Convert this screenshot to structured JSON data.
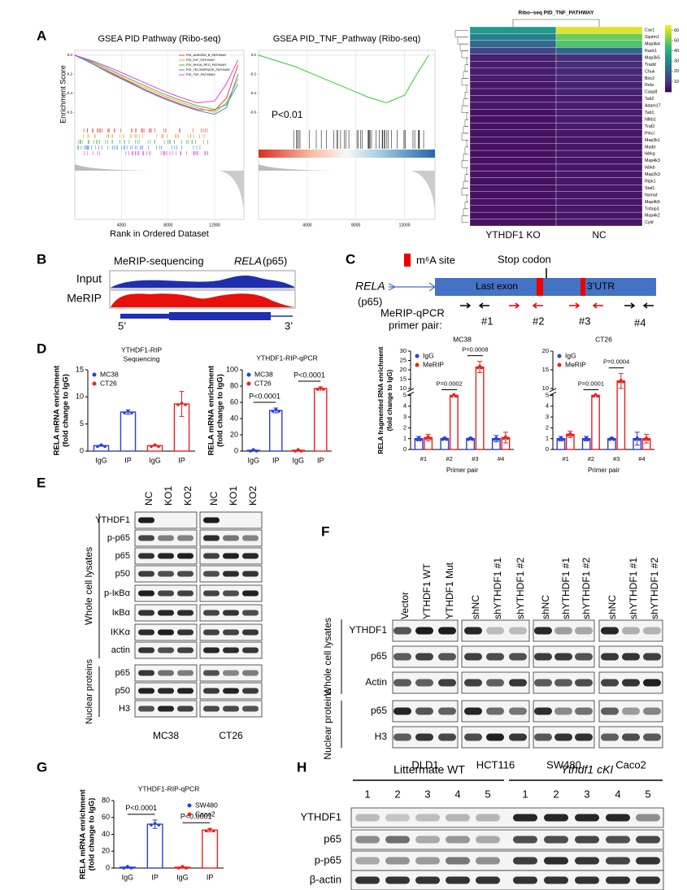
{
  "panel_labels": [
    "A",
    "B",
    "C",
    "D",
    "E",
    "F",
    "G",
    "H"
  ],
  "chart_data": [
    {
      "type": "line",
      "title": "GSEA PID Pathway (Ribo-seq)",
      "ylabel": "Enrichment Score",
      "xlabel": "Rank in Ordered Dataset",
      "x": [
        0,
        1500,
        3000,
        4500,
        6000,
        7500,
        9000,
        10500,
        12000,
        13000,
        14000
      ],
      "xlim": [
        0,
        14500
      ],
      "xticks": [
        4000,
        8000,
        12000
      ],
      "ylim": [
        -0.7,
        0.05
      ],
      "yticks": [
        {
          "value": 0,
          "label": "0.0"
        },
        {
          "value": -0.2,
          "label": "-0.2"
        },
        {
          "value": -0.4,
          "label": "-0.4"
        },
        {
          "value": -0.6,
          "label": "-0.6"
        }
      ],
      "grid": true,
      "legend": "top-right",
      "series": [
        {
          "name": "PID_AURORA_B_PATHWAY",
          "color": "#e8413c",
          "values": [
            0,
            -0.09,
            -0.18,
            -0.27,
            -0.36,
            -0.44,
            -0.51,
            -0.57,
            -0.58,
            -0.45,
            -0.1
          ]
        },
        {
          "name": "PID_E2F_PATHWAY",
          "color": "#e8a33c",
          "values": [
            0,
            -0.08,
            -0.17,
            -0.26,
            -0.34,
            -0.42,
            -0.49,
            -0.55,
            -0.6,
            -0.5,
            -0.25
          ]
        },
        {
          "name": "PID_RHOA_REG_PATHWAY",
          "color": "#4caf50",
          "values": [
            0,
            -0.07,
            -0.15,
            -0.24,
            -0.32,
            -0.4,
            -0.47,
            -0.53,
            -0.57,
            -0.52,
            -0.3
          ]
        },
        {
          "name": "PID_TELOMERASE_PATHWAY",
          "color": "#3c8be8",
          "values": [
            0,
            -0.09,
            -0.19,
            -0.28,
            -0.37,
            -0.45,
            -0.52,
            -0.58,
            -0.62,
            -0.55,
            -0.2
          ]
        },
        {
          "name": "PID_TNF_PATHWAY",
          "color": "#e040e0",
          "values": [
            0,
            -0.06,
            -0.13,
            -0.21,
            -0.29,
            -0.37,
            -0.44,
            -0.5,
            -0.48,
            -0.3,
            -0.05
          ]
        }
      ]
    },
    {
      "type": "line",
      "title": "GSEA PID_TNF_Pathway (Ribo-seq)",
      "annotation": "P<0.01",
      "x": [
        0,
        1500,
        3000,
        4500,
        6000,
        7500,
        9000,
        10500,
        12000,
        13000,
        14000
      ],
      "xlim": [
        0,
        14500
      ],
      "xticks": [
        4000,
        8000,
        12000
      ],
      "ylim": [
        -0.7,
        0.05
      ],
      "yticks": [
        {
          "value": 0,
          "label": "0.0"
        },
        {
          "value": -0.2,
          "label": "-0.2"
        },
        {
          "value": -0.4,
          "label": "-0.4"
        },
        {
          "value": -0.6,
          "label": "-0.6"
        }
      ],
      "grid": true,
      "series": [
        {
          "color": "#33cc33",
          "values": [
            0,
            -0.06,
            -0.12,
            -0.2,
            -0.28,
            -0.36,
            -0.44,
            -0.5,
            -0.42,
            -0.2,
            0.0
          ]
        }
      ]
    },
    {
      "type": "heatmap",
      "title": "Ribo−seq PID_TNF_PATHWAY",
      "columns": [
        "YTHDF1 KO",
        "NC"
      ],
      "rows": [
        "Cav1",
        "Sqstm1",
        "Map4k4",
        "Rack1",
        "Map3k5",
        "Tradd",
        "Chuk",
        "Birc2",
        "Rela",
        "Casp8",
        "Tab2",
        "Adam17",
        "Tab1",
        "Nfkb1",
        "Traf2",
        "Prkci",
        "Map3k1",
        "Madd",
        "Ikbkg",
        "Map4k3",
        "Ikbkb",
        "Map2k3",
        "Ripk1",
        "Stat1",
        "Nsmaf",
        "Map4k5",
        "Tnfaip3",
        "Map4k2",
        "Cyld"
      ],
      "values": [
        [
          35,
          62
        ],
        [
          28,
          50
        ],
        [
          22,
          47
        ],
        [
          14,
          22
        ],
        [
          6,
          9
        ],
        [
          5,
          8
        ],
        [
          5,
          7
        ],
        [
          5,
          7
        ],
        [
          4,
          6
        ],
        [
          4,
          6
        ],
        [
          4,
          5
        ],
        [
          4,
          5
        ],
        [
          3,
          5
        ],
        [
          3,
          5
        ],
        [
          3,
          5
        ],
        [
          3,
          4
        ],
        [
          3,
          4
        ],
        [
          3,
          4
        ],
        [
          3,
          4
        ],
        [
          3,
          4
        ],
        [
          3,
          4
        ],
        [
          3,
          4
        ],
        [
          3,
          4
        ],
        [
          3,
          4
        ],
        [
          3,
          4
        ],
        [
          3,
          4
        ],
        [
          3,
          4
        ],
        [
          3,
          4
        ],
        [
          3,
          4
        ]
      ],
      "zlim": [
        0,
        65
      ],
      "colorbar_ticks": [
        10,
        20,
        30,
        40,
        50,
        60
      ]
    },
    {
      "type": "bar",
      "title": "MC38",
      "categories": [
        "#1",
        "#2",
        "#3",
        "#4"
      ],
      "category_colors": [
        "#000000",
        "#e00000",
        "#e00000",
        "#000000"
      ],
      "series": [
        {
          "name": "IgG",
          "color": "#2a3fd6",
          "values": [
            1,
            1,
            1,
            1
          ],
          "errors": [
            0.2,
            0.1,
            0.1,
            0.3
          ]
        },
        {
          "name": "MeRIP",
          "color": "#e82020",
          "values": [
            1.1,
            5.3,
            21.5,
            1.1
          ],
          "errors": [
            0.3,
            0.3,
            3,
            0.5
          ]
        }
      ],
      "ylim": [
        0,
        30
      ],
      "ybreak": [
        5,
        10
      ],
      "yticks": [
        0,
        1,
        2,
        3,
        4,
        5,
        10,
        15,
        20,
        25,
        30
      ],
      "ylabel": [
        "RELA fragmented RNA enrichment",
        "(fold change to IgG)"
      ],
      "xlabel": "Primer pair",
      "legend": "top-left",
      "annotations": [
        {
          "text": "P=0.0002",
          "category": 1
        },
        {
          "text": "P=0.0008",
          "category": 2
        }
      ]
    },
    {
      "type": "bar",
      "title": "CT26",
      "categories": [
        "#1",
        "#2",
        "#3",
        "#4"
      ],
      "category_colors": [
        "#000000",
        "#e00000",
        "#e00000",
        "#000000"
      ],
      "series": [
        {
          "name": "IgG",
          "color": "#2a3fd6",
          "values": [
            1,
            1,
            1,
            1
          ],
          "errors": [
            0.2,
            0.2,
            0.1,
            0.6
          ]
        },
        {
          "name": "MeRIP",
          "color": "#e82020",
          "values": [
            1.4,
            6.2,
            12,
            1.0
          ],
          "errors": [
            0.3,
            0.3,
            2,
            0.4
          ]
        }
      ],
      "ylim": [
        0,
        20
      ],
      "ybreak": [
        5,
        10
      ],
      "yticks": [
        0,
        1,
        2,
        3,
        4,
        5,
        10,
        15,
        20
      ],
      "xlabel": "Primer pair",
      "legend": "top-left",
      "annotations": [
        {
          "text": "P=0.0001",
          "category": 1
        },
        {
          "text": "P=0.0004",
          "category": 2
        }
      ]
    },
    {
      "type": "bar",
      "title": [
        "YTHDF1-RIP",
        "Sequencing"
      ],
      "categories": [
        "IgG",
        "IP",
        "IgG",
        "IP"
      ],
      "series": [
        {
          "name": "MC38",
          "color": "#2a3fd6",
          "values": [
            1,
            7.2,
            null,
            null
          ],
          "errors": [
            0.1,
            0.4,
            null,
            null
          ]
        },
        {
          "name": "CT26",
          "color": "#e82020",
          "values": [
            null,
            null,
            1,
            8.7
          ],
          "errors": [
            null,
            null,
            0.1,
            2.3
          ]
        }
      ],
      "ylim": [
        0,
        15
      ],
      "yticks": [
        0,
        5,
        10,
        15
      ],
      "ylabel": [
        "RELA mRNA enrichment",
        "(fold change to IgG)"
      ],
      "legend": "top-left"
    },
    {
      "type": "bar",
      "title": "YTHDF1-RIP-qPCR",
      "categories": [
        "IgG",
        "IP",
        "IgG",
        "IP"
      ],
      "series": [
        {
          "name": "MC38",
          "color": "#2a3fd6",
          "values": [
            1,
            50,
            null,
            null
          ],
          "errors": [
            0.5,
            3,
            null,
            null
          ]
        },
        {
          "name": "CT26",
          "color": "#e82020",
          "values": [
            null,
            null,
            1,
            77
          ],
          "errors": [
            null,
            null,
            0.5,
            2
          ]
        }
      ],
      "ylim": [
        0,
        100
      ],
      "yticks": [
        0,
        20,
        40,
        60,
        80,
        100
      ],
      "ylabel": [
        "RELA mRNA enrichment",
        "(fold change to IgG)"
      ],
      "legend": "top-left",
      "annotations": [
        {
          "text": "P<0.0001",
          "category": 1
        },
        {
          "text": "P<0.0001",
          "category": 3
        }
      ]
    },
    {
      "type": "bar",
      "title": "YTHDF1-RIP-qPCR",
      "categories": [
        "IgG",
        "IP",
        "IgG",
        "IP"
      ],
      "series": [
        {
          "name": "SW480",
          "color": "#2a3fd6",
          "values": [
            1,
            52,
            null,
            null
          ],
          "errors": [
            0.5,
            5,
            null,
            null
          ]
        },
        {
          "name": "Caco2",
          "color": "#e82020",
          "values": [
            null,
            null,
            1,
            45
          ],
          "errors": [
            null,
            null,
            0.5,
            2
          ]
        }
      ],
      "ylim": [
        0,
        80
      ],
      "yticks": [
        0,
        20,
        40,
        60,
        80
      ],
      "ylabel": [
        "RELA mRNA enrichment",
        "(fold change to IgG)"
      ],
      "legend": "top-right",
      "annotations": [
        {
          "text": "P<0.0001",
          "category": 1
        },
        {
          "text": "P<0.0001",
          "category": 3
        }
      ]
    }
  ],
  "B": {
    "title": "MeRIP-sequencing",
    "gene": "RELA",
    "gene_suffix": "(p65)",
    "tracks": [
      "Input",
      "MeRIP"
    ],
    "ends": [
      "5’",
      "3’"
    ]
  },
  "C_diagram": {
    "legend": "m⁶A site",
    "stop": "Stop codon",
    "gene": "RELA",
    "gene_suffix": "(p65)",
    "regions": [
      "Last exon",
      "3’UTR"
    ],
    "primer_label": [
      "MeRIP-qPCR",
      "primer pair:"
    ],
    "primers": [
      "#1",
      "#2",
      "#3",
      "#4"
    ]
  },
  "E": {
    "lanes": [
      "NC",
      "KO1",
      "KO2",
      "NC",
      "KO1",
      "KO2"
    ],
    "rows": [
      "YTHDF1",
      "p-p65",
      "p65",
      "p50",
      "p-IκBα",
      "IκBα",
      "IKKα",
      "actin",
      "p65",
      "p50",
      "H3"
    ],
    "groups": [
      "Whole cell lysates",
      "Nuclear proteins"
    ],
    "cell_lines": [
      "MC38",
      "CT26"
    ]
  },
  "F": {
    "lanes": [
      "Vector",
      "YTHDF1 WT",
      "YTHDF1 Mut",
      "shNC",
      "shYTHDF1 #1",
      "shYTHDF1 #2",
      "shNC",
      "shYTHDF1 #1",
      "shYTHDF1 #2",
      "shNC",
      "shYTHDF1 #1",
      "shYTHDF1 #2"
    ],
    "rows": [
      "YTHDF1",
      "p65",
      "Actin",
      "p65",
      "H3"
    ],
    "groups": [
      "Whole cell lysates",
      "Nuclear proteins"
    ],
    "cell_lines": [
      "DLD1",
      "HCT116",
      "SW480",
      "Caco2"
    ]
  },
  "H": {
    "groups": [
      "Littermate WT",
      "Ythdf1 cKI"
    ],
    "lanes": [
      "1",
      "2",
      "3",
      "4",
      "5",
      "1",
      "2",
      "3",
      "4",
      "5"
    ],
    "rows": [
      "YTHDF1",
      "p65",
      "p-p65",
      "β-actin"
    ]
  }
}
